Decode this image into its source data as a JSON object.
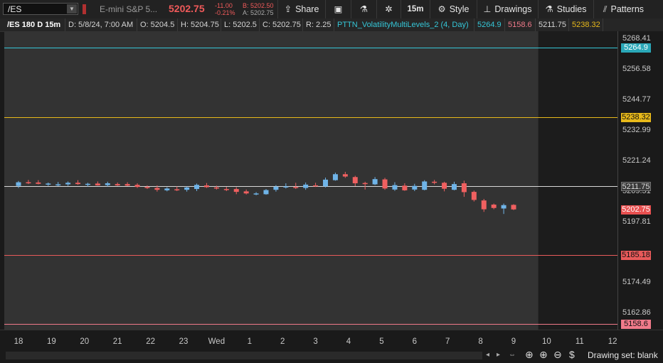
{
  "toolbar": {
    "symbol": "/ES",
    "description": "E-mini S&P 5...",
    "last": "5202.75",
    "change": "-11.00",
    "change_pct": "-0.21%",
    "bid": "B: 5202.50",
    "ask": "A: 5202.75",
    "share": "Share",
    "timeframe": "15m",
    "style": "Style",
    "drawings": "Drawings",
    "studies": "Studies",
    "patterns": "Patterns",
    "icons": [
      "share-icon",
      "snapshot-icon",
      "flask-icon",
      "gear-icon",
      "style-icon",
      "drawings-icon",
      "studies-icon",
      "patterns-icon"
    ]
  },
  "infobar": {
    "title": "/ES 180 D 15m",
    "date": "D: 5/8/24, 7:00 AM",
    "open": "O: 5204.5",
    "high": "H: 5204.75",
    "low": "L: 5202.5",
    "close": "C: 5202.75",
    "range": "R: 2.25",
    "study": "PTTN_VolatilityMultiLevels_2 (4, Day)",
    "v1": "5264.9",
    "v2": "5158.6",
    "v3": "5211.75",
    "v4": "5238.32"
  },
  "price_axis": {
    "ticks": [
      "5268.41",
      "5256.58",
      "5244.77",
      "5232.99",
      "5221.24",
      "5209.51",
      "5197.81",
      "5185.18",
      "5174.49",
      "5162.86"
    ],
    "labels": [
      {
        "text": "5264.9",
        "color": "#35c7d8"
      },
      {
        "text": "5238.32",
        "color": "#e8b91a"
      },
      {
        "text": "5211.75",
        "color": "#cfcfcf"
      },
      {
        "text": "5202.75",
        "color": "#f05a5a"
      },
      {
        "text": "5185.18",
        "color": "#e85a5a"
      },
      {
        "text": "5158.6",
        "color": "#f07a8a"
      }
    ]
  },
  "time_axis": [
    "18",
    "19",
    "20",
    "21",
    "22",
    "23",
    "Wed",
    "1",
    "2",
    "3",
    "4",
    "5",
    "6",
    "7",
    "8",
    "9",
    "10",
    "11",
    "12"
  ],
  "status": {
    "drawing_set": "Drawing set: blank"
  },
  "colors": {
    "up": "#6fb4e8",
    "down": "#f06060",
    "session_bg": "#333333",
    "after_bg": "#1c1c1c"
  },
  "chart_data": {
    "type": "candlestick",
    "levels": [
      {
        "name": "5264.9",
        "value": 5264.9,
        "color": "#35c7d8"
      },
      {
        "name": "5238.32",
        "value": 5238.32,
        "color": "#e8b91a"
      },
      {
        "name": "5211.75",
        "value": 5211.75,
        "color": "#d8d8d8"
      },
      {
        "name": "5185.18",
        "value": 5185.18,
        "color": "#e85a5a"
      },
      {
        "name": "5158.6",
        "value": 5158.6,
        "color": "#f07a8a"
      }
    ],
    "ylim": [
      5156.5,
      5271.3
    ],
    "candles": [
      {
        "t": 18.0,
        "o": 5211.8,
        "h": 5213.7,
        "l": 5211.0,
        "c": 5213.2
      },
      {
        "t": 18.3,
        "o": 5213.2,
        "h": 5214.1,
        "l": 5212.5,
        "c": 5213.0
      },
      {
        "t": 18.6,
        "o": 5213.1,
        "h": 5214.0,
        "l": 5212.4,
        "c": 5212.6
      },
      {
        "t": 18.9,
        "o": 5212.4,
        "h": 5213.1,
        "l": 5211.8,
        "c": 5212.7
      },
      {
        "t": 19.2,
        "o": 5212.3,
        "h": 5213.3,
        "l": 5211.7,
        "c": 5212.4
      },
      {
        "t": 19.5,
        "o": 5212.4,
        "h": 5213.5,
        "l": 5211.8,
        "c": 5213.0
      },
      {
        "t": 19.8,
        "o": 5213.0,
        "h": 5214.0,
        "l": 5212.2,
        "c": 5212.5
      },
      {
        "t": 20.1,
        "o": 5212.2,
        "h": 5213.0,
        "l": 5211.5,
        "c": 5212.6
      },
      {
        "t": 20.4,
        "o": 5212.7,
        "h": 5213.5,
        "l": 5211.9,
        "c": 5212.0
      },
      {
        "t": 20.7,
        "o": 5212.1,
        "h": 5213.4,
        "l": 5211.5,
        "c": 5212.8
      },
      {
        "t": 21.0,
        "o": 5212.5,
        "h": 5213.1,
        "l": 5211.8,
        "c": 5212.0
      },
      {
        "t": 21.3,
        "o": 5212.5,
        "h": 5213.2,
        "l": 5211.7,
        "c": 5211.9
      },
      {
        "t": 21.6,
        "o": 5212.2,
        "h": 5212.8,
        "l": 5211.0,
        "c": 5211.4
      },
      {
        "t": 21.9,
        "o": 5211.4,
        "h": 5212.0,
        "l": 5210.6,
        "c": 5211.0
      },
      {
        "t": 22.2,
        "o": 5211.0,
        "h": 5212.0,
        "l": 5209.6,
        "c": 5210.3
      },
      {
        "t": 22.5,
        "o": 5210.1,
        "h": 5211.3,
        "l": 5209.7,
        "c": 5210.8
      },
      {
        "t": 22.8,
        "o": 5210.5,
        "h": 5211.6,
        "l": 5209.8,
        "c": 5210.2
      },
      {
        "t": 23.1,
        "o": 5210.3,
        "h": 5211.6,
        "l": 5209.6,
        "c": 5211.2
      },
      {
        "t": 23.4,
        "o": 5210.6,
        "h": 5212.7,
        "l": 5209.8,
        "c": 5212.2
      },
      {
        "t": 23.7,
        "o": 5212.0,
        "h": 5212.9,
        "l": 5211.0,
        "c": 5211.3
      },
      {
        "t": 24.0,
        "o": 5211.2,
        "h": 5211.9,
        "l": 5210.4,
        "c": 5210.8
      },
      {
        "t": 24.3,
        "o": 5210.6,
        "h": 5211.4,
        "l": 5209.8,
        "c": 5210.3
      },
      {
        "t": 24.6,
        "o": 5210.6,
        "h": 5211.3,
        "l": 5208.6,
        "c": 5209.5
      },
      {
        "t": 24.9,
        "o": 5209.7,
        "h": 5210.4,
        "l": 5208.5,
        "c": 5208.9
      },
      {
        "t": 25.2,
        "o": 5208.8,
        "h": 5209.4,
        "l": 5208.2,
        "c": 5208.9
      },
      {
        "t": 25.5,
        "o": 5208.6,
        "h": 5210.6,
        "l": 5208.4,
        "c": 5210.2
      },
      {
        "t": 25.8,
        "o": 5210.3,
        "h": 5212.1,
        "l": 5209.6,
        "c": 5211.5
      },
      {
        "t": 26.1,
        "o": 5211.3,
        "h": 5212.8,
        "l": 5210.8,
        "c": 5211.6
      },
      {
        "t": 26.4,
        "o": 5211.4,
        "h": 5213.0,
        "l": 5210.6,
        "c": 5211.2
      },
      {
        "t": 26.7,
        "o": 5211.0,
        "h": 5213.1,
        "l": 5210.3,
        "c": 5212.3
      },
      {
        "t": 27.0,
        "o": 5212.0,
        "h": 5213.0,
        "l": 5211.4,
        "c": 5211.6
      },
      {
        "t": 27.3,
        "o": 5211.6,
        "h": 5215.0,
        "l": 5211.2,
        "c": 5214.2
      },
      {
        "t": 27.6,
        "o": 5214.0,
        "h": 5216.9,
        "l": 5213.8,
        "c": 5216.3
      },
      {
        "t": 27.9,
        "o": 5216.3,
        "h": 5217.2,
        "l": 5214.9,
        "c": 5215.4
      },
      {
        "t": 28.2,
        "o": 5215.2,
        "h": 5215.7,
        "l": 5211.7,
        "c": 5212.8
      },
      {
        "t": 28.5,
        "o": 5212.9,
        "h": 5213.4,
        "l": 5210.4,
        "c": 5212.5
      },
      {
        "t": 28.8,
        "o": 5212.4,
        "h": 5215.2,
        "l": 5212.1,
        "c": 5214.4
      },
      {
        "t": 29.1,
        "o": 5214.3,
        "h": 5214.9,
        "l": 5210.3,
        "c": 5210.8
      },
      {
        "t": 29.4,
        "o": 5210.4,
        "h": 5213.2,
        "l": 5209.9,
        "c": 5212.1
      },
      {
        "t": 29.7,
        "o": 5211.9,
        "h": 5212.8,
        "l": 5209.9,
        "c": 5210.1
      },
      {
        "t": 30.0,
        "o": 5210.4,
        "h": 5212.6,
        "l": 5209.8,
        "c": 5211.8
      },
      {
        "t": 30.3,
        "o": 5210.3,
        "h": 5214.0,
        "l": 5210.1,
        "c": 5213.5
      },
      {
        "t": 30.6,
        "o": 5213.4,
        "h": 5214.1,
        "l": 5212.4,
        "c": 5213.0
      },
      {
        "t": 30.9,
        "o": 5213.0,
        "h": 5213.4,
        "l": 5209.7,
        "c": 5210.7
      },
      {
        "t": 31.2,
        "o": 5210.3,
        "h": 5213.4,
        "l": 5210.1,
        "c": 5212.5
      },
      {
        "t": 31.5,
        "o": 5212.8,
        "h": 5213.8,
        "l": 5207.6,
        "c": 5209.4
      },
      {
        "t": 31.8,
        "o": 5209.5,
        "h": 5210.0,
        "l": 5205.8,
        "c": 5206.4
      },
      {
        "t": 32.1,
        "o": 5206.2,
        "h": 5206.8,
        "l": 5201.8,
        "c": 5202.8
      },
      {
        "t": 32.4,
        "o": 5204.6,
        "h": 5205.0,
        "l": 5202.8,
        "c": 5203.3
      },
      {
        "t": 32.7,
        "o": 5203.1,
        "h": 5205.0,
        "l": 5201.0,
        "c": 5204.4
      },
      {
        "t": 33.0,
        "o": 5204.5,
        "h": 5204.75,
        "l": 5202.5,
        "c": 5202.75
      }
    ],
    "session_end_t": 33.75
  }
}
